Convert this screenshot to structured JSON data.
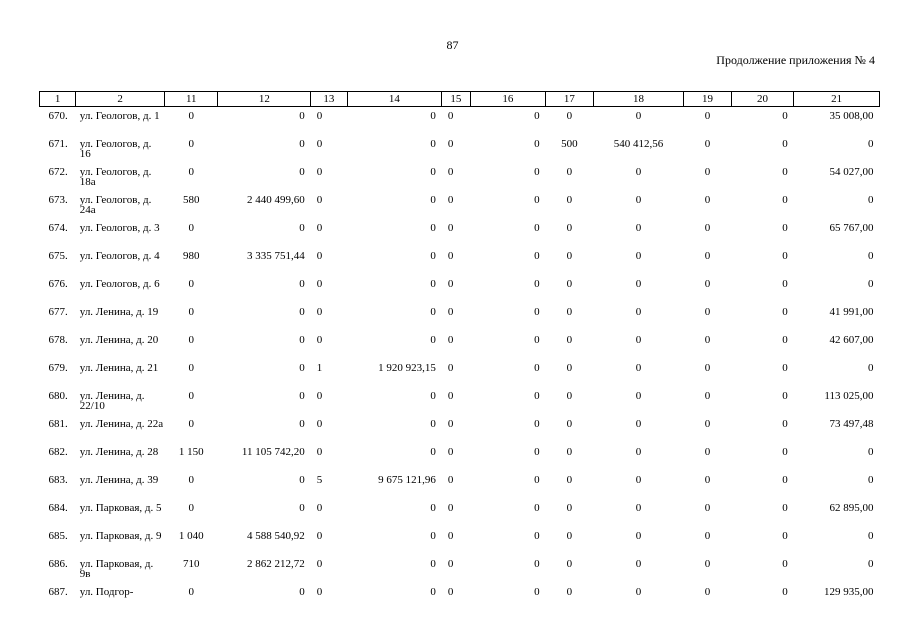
{
  "page_number": "87",
  "caption": "Продолжение приложения № 4",
  "columns": [
    "1",
    "2",
    "11",
    "12",
    "13",
    "14",
    "15",
    "16",
    "17",
    "18",
    "19",
    "20",
    "21"
  ],
  "rows": [
    [
      "670.",
      "ул. Геологов, д. 1",
      "0",
      "0",
      "0",
      "0",
      "0",
      "0",
      "0",
      "0",
      "0",
      "0",
      "35 008,00"
    ],
    [
      "671.",
      "ул. Геологов, д. 16",
      "0",
      "0",
      "0",
      "0",
      "0",
      "0",
      "500",
      "540 412,56",
      "0",
      "0",
      "0"
    ],
    [
      "672.",
      "ул. Геологов, д. 18а",
      "0",
      "0",
      "0",
      "0",
      "0",
      "0",
      "0",
      "0",
      "0",
      "0",
      "54 027,00"
    ],
    [
      "673.",
      "ул. Геологов, д. 24а",
      "580",
      "2 440 499,60",
      "0",
      "0",
      "0",
      "0",
      "0",
      "0",
      "0",
      "0",
      "0"
    ],
    [
      "674.",
      "ул. Геологов, д. 3",
      "0",
      "0",
      "0",
      "0",
      "0",
      "0",
      "0",
      "0",
      "0",
      "0",
      "65 767,00"
    ],
    [
      "675.",
      "ул. Геологов, д. 4",
      "980",
      "3 335 751,44",
      "0",
      "0",
      "0",
      "0",
      "0",
      "0",
      "0",
      "0",
      "0"
    ],
    [
      "676.",
      "ул. Геологов, д. 6",
      "0",
      "0",
      "0",
      "0",
      "0",
      "0",
      "0",
      "0",
      "0",
      "0",
      "0"
    ],
    [
      "677.",
      "ул. Ленина, д. 19",
      "0",
      "0",
      "0",
      "0",
      "0",
      "0",
      "0",
      "0",
      "0",
      "0",
      "41 991,00"
    ],
    [
      "678.",
      "ул. Ленина, д. 20",
      "0",
      "0",
      "0",
      "0",
      "0",
      "0",
      "0",
      "0",
      "0",
      "0",
      "42 607,00"
    ],
    [
      "679.",
      "ул. Ленина, д. 21",
      "0",
      "0",
      "1",
      "1 920 923,15",
      "0",
      "0",
      "0",
      "0",
      "0",
      "0",
      "0"
    ],
    [
      "680.",
      "ул. Ленина, д. 22/10",
      "0",
      "0",
      "0",
      "0",
      "0",
      "0",
      "0",
      "0",
      "0",
      "0",
      "113 025,00"
    ],
    [
      "681.",
      "ул. Ленина, д. 22а",
      "0",
      "0",
      "0",
      "0",
      "0",
      "0",
      "0",
      "0",
      "0",
      "0",
      "73 497,48"
    ],
    [
      "682.",
      "ул. Ленина, д. 28",
      "1 150",
      "11 105 742,20",
      "0",
      "0",
      "0",
      "0",
      "0",
      "0",
      "0",
      "0",
      "0"
    ],
    [
      "683.",
      "ул. Ленина, д. 39",
      "0",
      "0",
      "5",
      "9 675 121,96",
      "0",
      "0",
      "0",
      "0",
      "0",
      "0",
      "0"
    ],
    [
      "684.",
      "ул. Парковая, д. 5",
      "0",
      "0",
      "0",
      "0",
      "0",
      "0",
      "0",
      "0",
      "0",
      "0",
      "62 895,00"
    ],
    [
      "685.",
      "ул. Парковая, д. 9",
      "1 040",
      "4 588 540,92",
      "0",
      "0",
      "0",
      "0",
      "0",
      "0",
      "0",
      "0",
      "0"
    ],
    [
      "686.",
      "ул. Парковая, д. 9в",
      "710",
      "2 862 212,72",
      "0",
      "0",
      "0",
      "0",
      "0",
      "0",
      "0",
      "0",
      "0"
    ],
    [
      "687.",
      "ул. Подгор-",
      "0",
      "0",
      "0",
      "0",
      "0",
      "0",
      "0",
      "0",
      "0",
      "0",
      "129 935,00"
    ]
  ]
}
